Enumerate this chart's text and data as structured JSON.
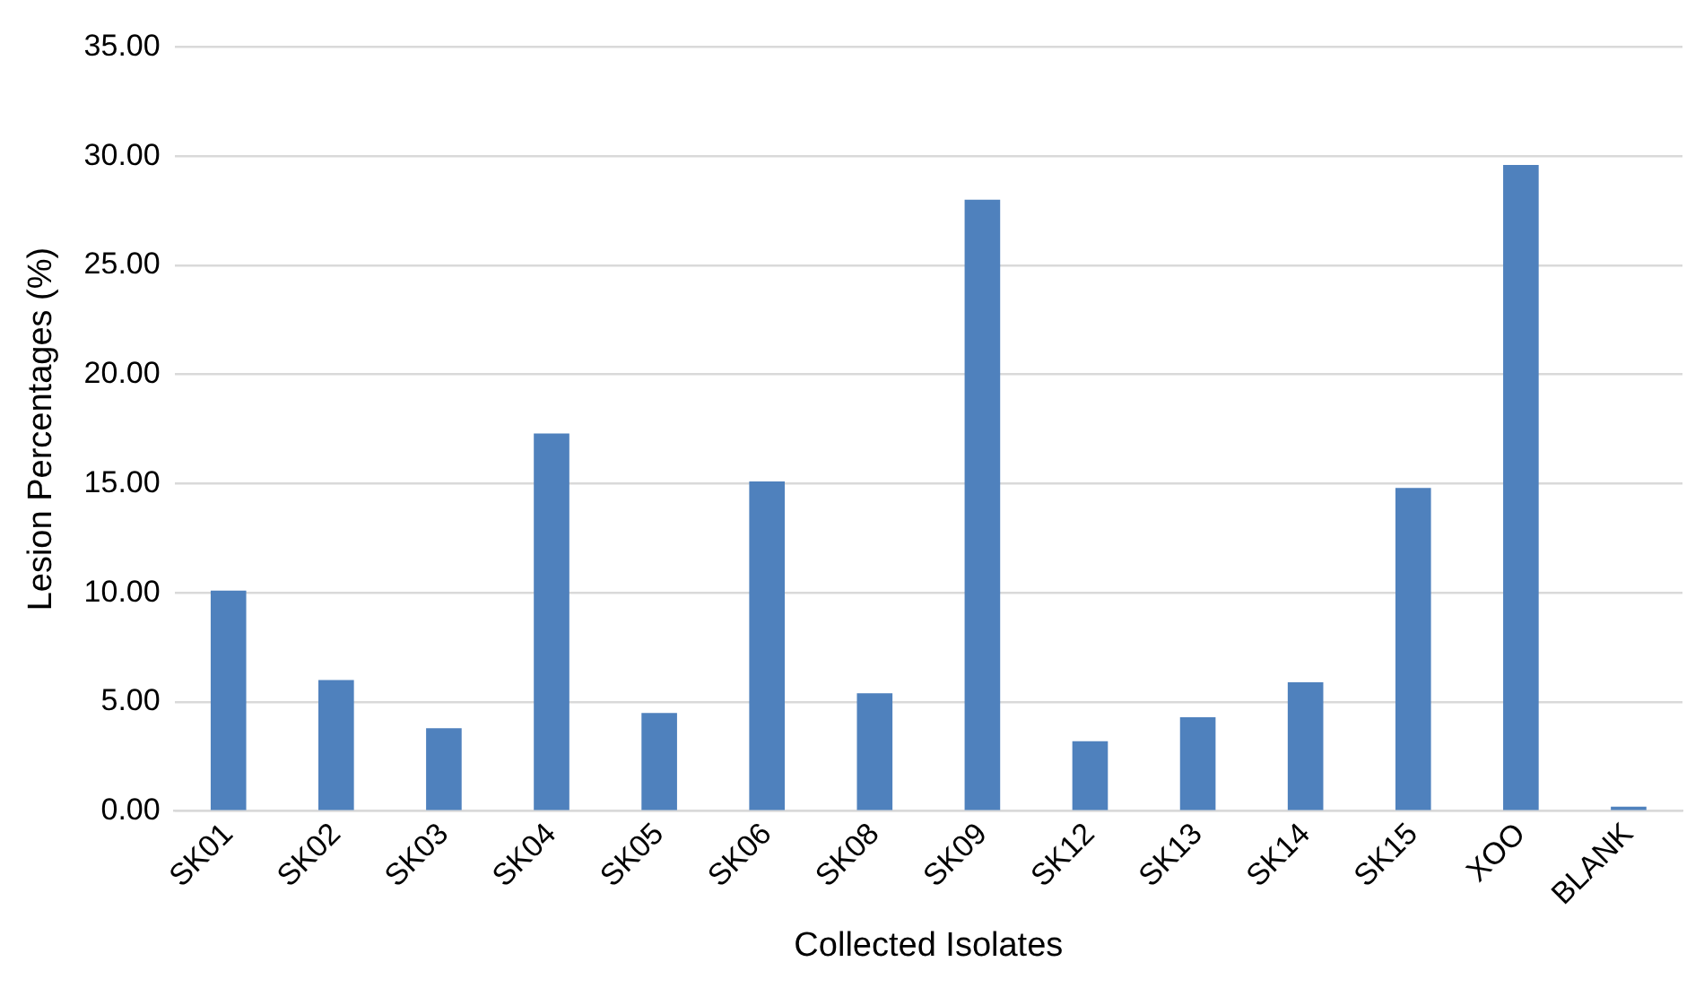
{
  "chart_data": {
    "type": "bar",
    "xlabel": "Collected Isolates",
    "ylabel": "Lesion Percentages (%)",
    "categories": [
      "SK01",
      "SK02",
      "SK03",
      "SK04",
      "SK05",
      "SK06",
      "SK08",
      "SK09",
      "SK12",
      "SK13",
      "SK14",
      "SK15",
      "XOO",
      "BLANK"
    ],
    "values": [
      10.1,
      6.0,
      3.8,
      17.3,
      4.5,
      15.1,
      5.4,
      28.0,
      3.2,
      4.3,
      5.9,
      14.8,
      29.6,
      0.2
    ],
    "color": "#4f81bd",
    "ylim": [
      0,
      35
    ],
    "yticks": [
      {
        "value": 0,
        "label": "0.00"
      },
      {
        "value": 5,
        "label": "5.00"
      },
      {
        "value": 10,
        "label": "10.00"
      },
      {
        "value": 15,
        "label": "15.00"
      },
      {
        "value": 20,
        "label": "20.00"
      },
      {
        "value": 25,
        "label": "25.00"
      },
      {
        "value": 30,
        "label": "30.00"
      },
      {
        "value": 35,
        "label": "35.00"
      }
    ],
    "grid": "y"
  }
}
